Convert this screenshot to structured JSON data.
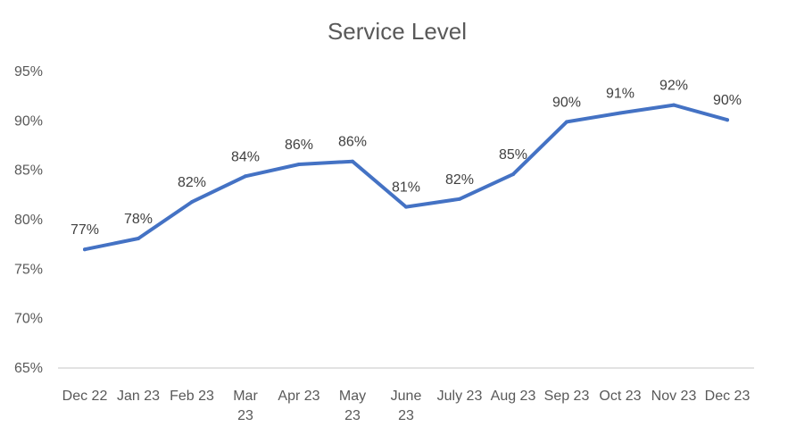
{
  "chart_data": {
    "type": "line",
    "title": "Service Level",
    "xlabel": "",
    "ylabel": "",
    "ylim": [
      65,
      95
    ],
    "yticks": [
      65,
      70,
      75,
      80,
      85,
      90,
      95
    ],
    "ytick_labels": [
      "65%",
      "70%",
      "75%",
      "80%",
      "85%",
      "90%",
      "95%"
    ],
    "grid": false,
    "legend": "none",
    "categories": [
      [
        "Dec 22"
      ],
      [
        "Jan 23"
      ],
      [
        "Feb 23"
      ],
      [
        "Mar",
        "23"
      ],
      [
        "Apr 23"
      ],
      [
        "May",
        "23"
      ],
      [
        "June",
        "23"
      ],
      [
        "July 23"
      ],
      [
        "Aug 23"
      ],
      [
        "Sep 23"
      ],
      [
        "Oct 23"
      ],
      [
        "Nov 23"
      ],
      [
        "Dec 23"
      ]
    ],
    "series": [
      {
        "values": [
          77,
          78.1,
          81.8,
          84.4,
          85.6,
          85.9,
          81.3,
          82.1,
          84.6,
          89.9,
          90.8,
          91.6,
          90.1
        ],
        "data_labels": [
          "77%",
          "78%",
          "82%",
          "84%",
          "86%",
          "86%",
          "81%",
          "82%",
          "85%",
          "90%",
          "91%",
          "92%",
          "90%"
        ],
        "color": "#4472c4"
      }
    ]
  }
}
